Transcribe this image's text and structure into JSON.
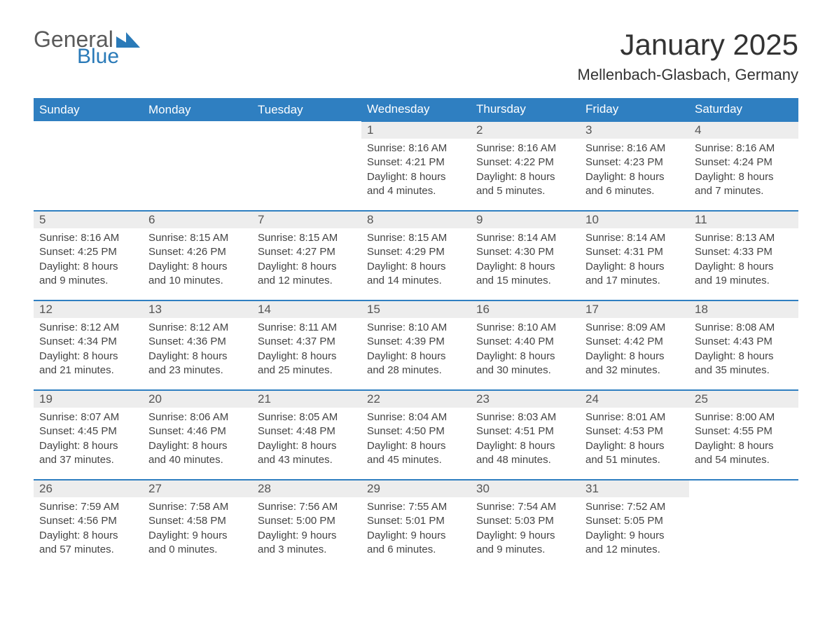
{
  "logo": {
    "general": "General",
    "blue": "Blue",
    "accent": "#2a7ab8",
    "gray": "#5a5a5a"
  },
  "title": "January 2025",
  "location": "Mellenbach-Glasbach, Germany",
  "colors": {
    "header_bg": "#2f7fc1",
    "header_text": "#ffffff",
    "daynum_bg": "#ededed",
    "border": "#2f7fc1",
    "text": "#444444",
    "background": "#ffffff"
  },
  "daysOfWeek": [
    "Sunday",
    "Monday",
    "Tuesday",
    "Wednesday",
    "Thursday",
    "Friday",
    "Saturday"
  ],
  "weeks": [
    [
      null,
      null,
      null,
      {
        "n": "1",
        "sunrise": "8:16 AM",
        "sunset": "4:21 PM",
        "daylight": "8 hours and 4 minutes."
      },
      {
        "n": "2",
        "sunrise": "8:16 AM",
        "sunset": "4:22 PM",
        "daylight": "8 hours and 5 minutes."
      },
      {
        "n": "3",
        "sunrise": "8:16 AM",
        "sunset": "4:23 PM",
        "daylight": "8 hours and 6 minutes."
      },
      {
        "n": "4",
        "sunrise": "8:16 AM",
        "sunset": "4:24 PM",
        "daylight": "8 hours and 7 minutes."
      }
    ],
    [
      {
        "n": "5",
        "sunrise": "8:16 AM",
        "sunset": "4:25 PM",
        "daylight": "8 hours and 9 minutes."
      },
      {
        "n": "6",
        "sunrise": "8:15 AM",
        "sunset": "4:26 PM",
        "daylight": "8 hours and 10 minutes."
      },
      {
        "n": "7",
        "sunrise": "8:15 AM",
        "sunset": "4:27 PM",
        "daylight": "8 hours and 12 minutes."
      },
      {
        "n": "8",
        "sunrise": "8:15 AM",
        "sunset": "4:29 PM",
        "daylight": "8 hours and 14 minutes."
      },
      {
        "n": "9",
        "sunrise": "8:14 AM",
        "sunset": "4:30 PM",
        "daylight": "8 hours and 15 minutes."
      },
      {
        "n": "10",
        "sunrise": "8:14 AM",
        "sunset": "4:31 PM",
        "daylight": "8 hours and 17 minutes."
      },
      {
        "n": "11",
        "sunrise": "8:13 AM",
        "sunset": "4:33 PM",
        "daylight": "8 hours and 19 minutes."
      }
    ],
    [
      {
        "n": "12",
        "sunrise": "8:12 AM",
        "sunset": "4:34 PM",
        "daylight": "8 hours and 21 minutes."
      },
      {
        "n": "13",
        "sunrise": "8:12 AM",
        "sunset": "4:36 PM",
        "daylight": "8 hours and 23 minutes."
      },
      {
        "n": "14",
        "sunrise": "8:11 AM",
        "sunset": "4:37 PM",
        "daylight": "8 hours and 25 minutes."
      },
      {
        "n": "15",
        "sunrise": "8:10 AM",
        "sunset": "4:39 PM",
        "daylight": "8 hours and 28 minutes."
      },
      {
        "n": "16",
        "sunrise": "8:10 AM",
        "sunset": "4:40 PM",
        "daylight": "8 hours and 30 minutes."
      },
      {
        "n": "17",
        "sunrise": "8:09 AM",
        "sunset": "4:42 PM",
        "daylight": "8 hours and 32 minutes."
      },
      {
        "n": "18",
        "sunrise": "8:08 AM",
        "sunset": "4:43 PM",
        "daylight": "8 hours and 35 minutes."
      }
    ],
    [
      {
        "n": "19",
        "sunrise": "8:07 AM",
        "sunset": "4:45 PM",
        "daylight": "8 hours and 37 minutes."
      },
      {
        "n": "20",
        "sunrise": "8:06 AM",
        "sunset": "4:46 PM",
        "daylight": "8 hours and 40 minutes."
      },
      {
        "n": "21",
        "sunrise": "8:05 AM",
        "sunset": "4:48 PM",
        "daylight": "8 hours and 43 minutes."
      },
      {
        "n": "22",
        "sunrise": "8:04 AM",
        "sunset": "4:50 PM",
        "daylight": "8 hours and 45 minutes."
      },
      {
        "n": "23",
        "sunrise": "8:03 AM",
        "sunset": "4:51 PM",
        "daylight": "8 hours and 48 minutes."
      },
      {
        "n": "24",
        "sunrise": "8:01 AM",
        "sunset": "4:53 PM",
        "daylight": "8 hours and 51 minutes."
      },
      {
        "n": "25",
        "sunrise": "8:00 AM",
        "sunset": "4:55 PM",
        "daylight": "8 hours and 54 minutes."
      }
    ],
    [
      {
        "n": "26",
        "sunrise": "7:59 AM",
        "sunset": "4:56 PM",
        "daylight": "8 hours and 57 minutes."
      },
      {
        "n": "27",
        "sunrise": "7:58 AM",
        "sunset": "4:58 PM",
        "daylight": "9 hours and 0 minutes."
      },
      {
        "n": "28",
        "sunrise": "7:56 AM",
        "sunset": "5:00 PM",
        "daylight": "9 hours and 3 minutes."
      },
      {
        "n": "29",
        "sunrise": "7:55 AM",
        "sunset": "5:01 PM",
        "daylight": "9 hours and 6 minutes."
      },
      {
        "n": "30",
        "sunrise": "7:54 AM",
        "sunset": "5:03 PM",
        "daylight": "9 hours and 9 minutes."
      },
      {
        "n": "31",
        "sunrise": "7:52 AM",
        "sunset": "5:05 PM",
        "daylight": "9 hours and 12 minutes."
      },
      null
    ]
  ],
  "labels": {
    "sunrise": "Sunrise: ",
    "sunset": "Sunset: ",
    "daylight": "Daylight: "
  }
}
